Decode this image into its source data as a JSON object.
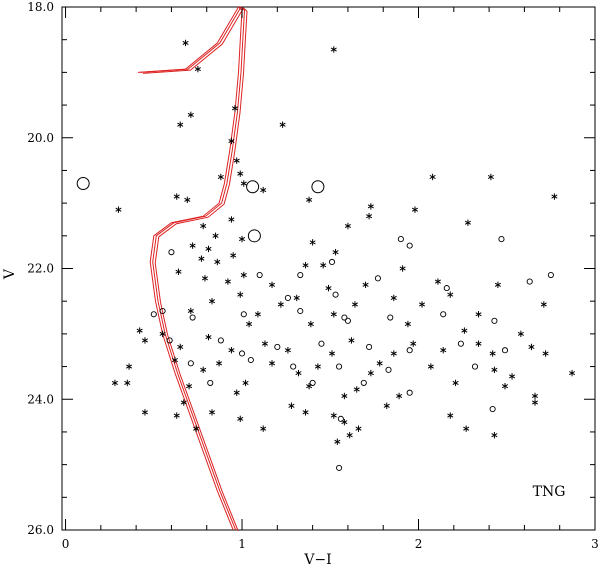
{
  "chart_data": {
    "type": "scatter",
    "xlabel": "V−I",
    "ylabel": "V",
    "xlim": [
      -0.02,
      3.0
    ],
    "ylim": [
      18.0,
      26.0
    ],
    "y_inverted": true,
    "x_ticks": [
      0,
      1,
      2,
      3
    ],
    "x_tick_labels": [
      "0",
      "1",
      "2",
      "3"
    ],
    "y_ticks": [
      18,
      20,
      22,
      24,
      26
    ],
    "y_tick_labels": [
      "18.0",
      "20.0",
      "22.0",
      "24.0",
      "26.0"
    ],
    "grid": false,
    "annotation": "TNG",
    "colors": {
      "isochrone": "#dd2222",
      "points": "#000000"
    },
    "series": [
      {
        "marker": "asterisk",
        "points": [
          [
            0.68,
            18.55
          ],
          [
            1.52,
            18.65
          ],
          [
            0.75,
            18.95
          ],
          [
            0.96,
            19.55
          ],
          [
            1.23,
            19.8
          ],
          [
            0.65,
            19.8
          ],
          [
            0.71,
            19.65
          ],
          [
            0.94,
            20.05
          ],
          [
            0.97,
            20.35
          ],
          [
            0.99,
            20.55
          ],
          [
            0.88,
            20.6
          ],
          [
            2.08,
            20.6
          ],
          [
            2.41,
            20.6
          ],
          [
            1.01,
            20.7
          ],
          [
            1.12,
            20.8
          ],
          [
            0.63,
            20.9
          ],
          [
            0.69,
            20.95
          ],
          [
            2.77,
            20.9
          ],
          [
            1.38,
            20.95
          ],
          [
            0.3,
            21.1
          ],
          [
            1.73,
            21.05
          ],
          [
            1.98,
            21.1
          ],
          [
            0.94,
            21.25
          ],
          [
            1.72,
            21.2
          ],
          [
            0.78,
            21.35
          ],
          [
            1.6,
            21.35
          ],
          [
            2.28,
            21.3
          ],
          [
            0.85,
            21.5
          ],
          [
            1.0,
            21.55
          ],
          [
            1.4,
            21.6
          ],
          [
            0.72,
            21.65
          ],
          [
            0.81,
            21.7
          ],
          [
            1.53,
            21.75
          ],
          [
            0.95,
            21.8
          ],
          [
            0.77,
            21.85
          ],
          [
            0.86,
            21.9
          ],
          [
            1.36,
            21.95
          ],
          [
            1.46,
            21.95
          ],
          [
            0.64,
            22.05
          ],
          [
            1.01,
            22.1
          ],
          [
            1.91,
            22.0
          ],
          [
            0.79,
            22.15
          ],
          [
            0.92,
            22.2
          ],
          [
            1.17,
            22.25
          ],
          [
            1.49,
            22.3
          ],
          [
            1.7,
            22.25
          ],
          [
            2.11,
            22.2
          ],
          [
            2.45,
            22.25
          ],
          [
            0.99,
            22.4
          ],
          [
            1.31,
            22.45
          ],
          [
            2.18,
            22.4
          ],
          [
            1.86,
            22.45
          ],
          [
            0.83,
            22.5
          ],
          [
            1.22,
            22.55
          ],
          [
            1.64,
            22.55
          ],
          [
            2.02,
            22.55
          ],
          [
            2.71,
            22.55
          ],
          [
            0.71,
            22.65
          ],
          [
            1.09,
            22.7
          ],
          [
            1.52,
            22.7
          ],
          [
            2.34,
            22.7
          ],
          [
            1.04,
            22.85
          ],
          [
            1.39,
            22.85
          ],
          [
            1.94,
            22.85
          ],
          [
            2.26,
            22.95
          ],
          [
            2.58,
            23.0
          ],
          [
            0.42,
            22.95
          ],
          [
            0.55,
            23.0
          ],
          [
            0.81,
            23.05
          ],
          [
            1.13,
            23.15
          ],
          [
            1.62,
            23.1
          ],
          [
            1.97,
            23.15
          ],
          [
            2.34,
            23.15
          ],
          [
            2.64,
            23.2
          ],
          [
            0.45,
            23.1
          ],
          [
            0.65,
            23.2
          ],
          [
            0.94,
            23.25
          ],
          [
            1.26,
            23.25
          ],
          [
            1.51,
            23.3
          ],
          [
            1.86,
            23.3
          ],
          [
            2.14,
            23.25
          ],
          [
            2.42,
            23.3
          ],
          [
            2.72,
            23.3
          ],
          [
            0.62,
            23.4
          ],
          [
            0.87,
            23.45
          ],
          [
            1.17,
            23.45
          ],
          [
            1.43,
            23.5
          ],
          [
            1.78,
            23.45
          ],
          [
            2.07,
            23.5
          ],
          [
            2.43,
            23.55
          ],
          [
            0.78,
            23.55
          ],
          [
            1.32,
            23.6
          ],
          [
            1.73,
            23.6
          ],
          [
            2.53,
            23.65
          ],
          [
            2.87,
            23.6
          ],
          [
            0.36,
            23.5
          ],
          [
            0.28,
            23.75
          ],
          [
            0.35,
            23.75
          ],
          [
            0.7,
            23.8
          ],
          [
            1.02,
            23.75
          ],
          [
            1.38,
            23.8
          ],
          [
            1.65,
            23.85
          ],
          [
            2.21,
            23.75
          ],
          [
            2.49,
            23.8
          ],
          [
            0.97,
            23.9
          ],
          [
            1.58,
            23.95
          ],
          [
            1.89,
            23.95
          ],
          [
            2.66,
            23.95
          ],
          [
            0.67,
            24.05
          ],
          [
            1.28,
            24.1
          ],
          [
            1.82,
            24.1
          ],
          [
            2.66,
            24.05
          ],
          [
            0.83,
            24.2
          ],
          [
            1.36,
            24.2
          ],
          [
            1.52,
            24.25
          ],
          [
            2.18,
            24.25
          ],
          [
            0.45,
            24.2
          ],
          [
            0.63,
            24.25
          ],
          [
            0.99,
            24.3
          ],
          [
            1.58,
            24.35
          ],
          [
            0.74,
            24.45
          ],
          [
            1.12,
            24.45
          ],
          [
            1.66,
            24.45
          ],
          [
            2.27,
            24.45
          ],
          [
            2.43,
            24.55
          ],
          [
            1.54,
            24.65
          ],
          [
            1.61,
            24.55
          ]
        ]
      },
      {
        "marker": "open-circle",
        "points": [
          [
            0.55,
            22.65
          ],
          [
            0.72,
            22.75
          ],
          [
            1.01,
            22.7
          ],
          [
            1.33,
            22.65
          ],
          [
            1.6,
            22.8
          ],
          [
            1.84,
            22.75
          ],
          [
            2.14,
            22.7
          ],
          [
            2.43,
            22.8
          ],
          [
            0.59,
            23.1
          ],
          [
            0.88,
            23.1
          ],
          [
            1.2,
            23.2
          ],
          [
            1.45,
            23.15
          ],
          [
            1.72,
            23.2
          ],
          [
            1.95,
            23.25
          ],
          [
            2.24,
            23.15
          ],
          [
            2.49,
            23.25
          ],
          [
            0.71,
            23.45
          ],
          [
            1.05,
            23.4
          ],
          [
            1.29,
            23.5
          ],
          [
            1.55,
            23.5
          ],
          [
            1.83,
            23.55
          ],
          [
            2.32,
            23.5
          ],
          [
            0.82,
            23.75
          ],
          [
            1.4,
            23.75
          ],
          [
            1.69,
            23.75
          ],
          [
            1.95,
            23.9
          ],
          [
            2.42,
            24.15
          ],
          [
            0.6,
            21.75
          ],
          [
            1.9,
            21.55
          ],
          [
            1.95,
            21.65
          ],
          [
            2.47,
            21.55
          ],
          [
            1.51,
            21.9
          ],
          [
            1.33,
            22.1
          ],
          [
            1.1,
            22.1
          ],
          [
            2.75,
            22.1
          ],
          [
            1.77,
            22.15
          ],
          [
            2.63,
            22.2
          ],
          [
            1.26,
            22.45
          ],
          [
            1.53,
            22.4
          ],
          [
            2.16,
            22.3
          ],
          [
            1.0,
            23.3
          ],
          [
            1.56,
            24.3
          ],
          [
            1.55,
            25.05
          ],
          [
            1.58,
            22.75
          ],
          [
            0.5,
            22.7
          ]
        ]
      },
      {
        "marker": "large-open-circle",
        "points": [
          [
            0.1,
            20.7
          ],
          [
            1.06,
            20.75
          ],
          [
            1.43,
            20.75
          ],
          [
            1.07,
            21.5
          ]
        ]
      },
      {
        "marker": "isochrone",
        "points": [
          [
            0.41,
            19.0
          ],
          [
            0.68,
            18.95
          ],
          [
            0.86,
            18.55
          ],
          [
            0.98,
            18.0
          ],
          [
            1.0,
            18.05
          ],
          [
            0.99,
            18.5
          ],
          [
            0.98,
            19.0
          ],
          [
            0.96,
            19.6
          ],
          [
            0.93,
            20.2
          ],
          [
            0.9,
            20.7
          ],
          [
            0.87,
            21.0
          ],
          [
            0.78,
            21.2
          ],
          [
            0.6,
            21.3
          ],
          [
            0.5,
            21.5
          ],
          [
            0.48,
            21.9
          ],
          [
            0.51,
            22.5
          ],
          [
            0.55,
            23.0
          ],
          [
            0.62,
            23.6
          ],
          [
            0.7,
            24.2
          ],
          [
            0.78,
            24.8
          ],
          [
            0.86,
            25.4
          ],
          [
            0.95,
            26.0
          ]
        ]
      }
    ]
  }
}
